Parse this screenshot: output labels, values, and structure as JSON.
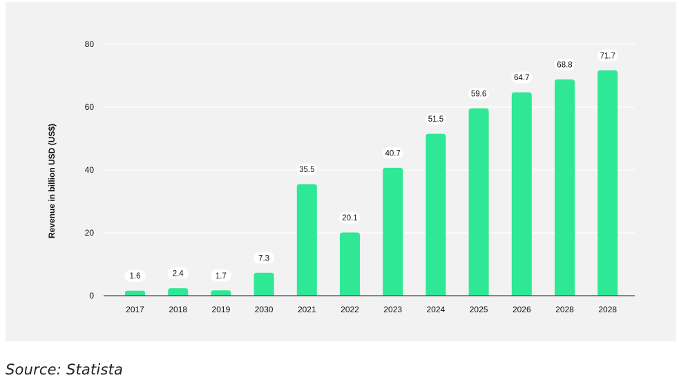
{
  "source_text": "Source: Statista",
  "colors": {
    "bar": "#2ee895",
    "panel": "#f2f2f2",
    "label_bg": "#ffffff",
    "text": "#111111",
    "grid": "#ffffff",
    "axis": "#444444"
  },
  "chart_data": {
    "type": "bar",
    "title": "",
    "xlabel": "",
    "ylabel": "Revenue in billion USD (US$)",
    "categories": [
      "2017",
      "2018",
      "2019",
      "2030",
      "2021",
      "2022",
      "2023",
      "2024",
      "2025",
      "2026",
      "2028",
      "2028"
    ],
    "values": [
      1.6,
      2.4,
      1.7,
      7.3,
      35.5,
      20.1,
      40.7,
      51.5,
      59.6,
      64.7,
      68.8,
      71.7
    ],
    "ylim": [
      0,
      80
    ],
    "yticks": [
      0,
      20,
      40,
      60,
      80
    ],
    "grid": true,
    "data_labels": true
  }
}
